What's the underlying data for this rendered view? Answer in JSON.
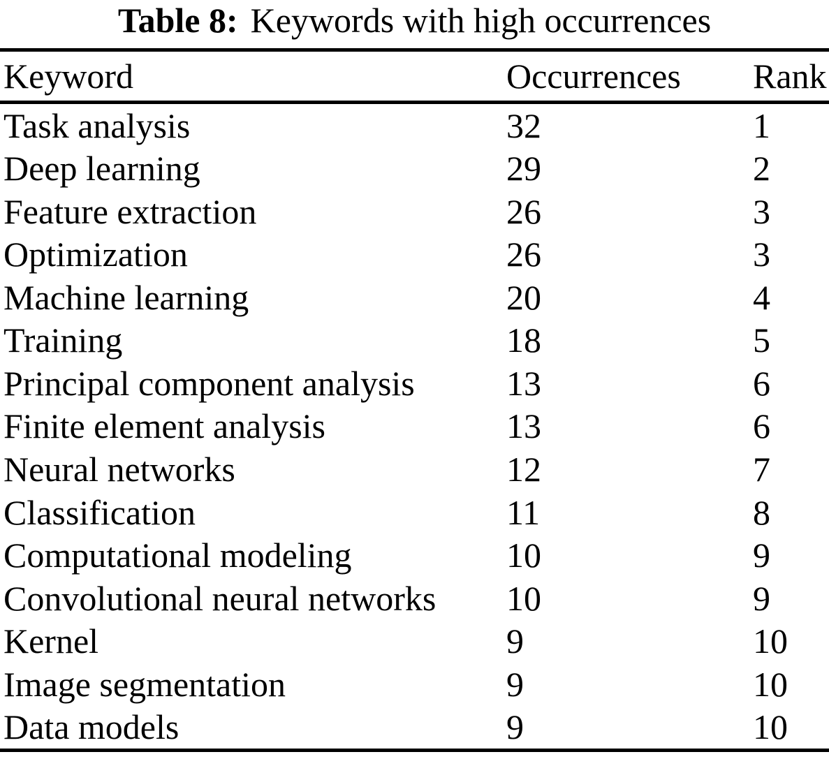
{
  "caption": {
    "label": "Table 8:",
    "text": "Keywords with high occurrences"
  },
  "table": {
    "headers": {
      "keyword": "Keyword",
      "occurrences": "Occurrences",
      "rank": "Rank"
    },
    "rows": [
      {
        "keyword": "Task analysis",
        "occurrences": "32",
        "rank": "1"
      },
      {
        "keyword": "Deep learning",
        "occurrences": "29",
        "rank": "2"
      },
      {
        "keyword": "Feature extraction",
        "occurrences": "26",
        "rank": "3"
      },
      {
        "keyword": "Optimization",
        "occurrences": "26",
        "rank": "3"
      },
      {
        "keyword": "Machine learning",
        "occurrences": "20",
        "rank": "4"
      },
      {
        "keyword": "Training",
        "occurrences": "18",
        "rank": "5"
      },
      {
        "keyword": "Principal component analysis",
        "occurrences": "13",
        "rank": "6"
      },
      {
        "keyword": "Finite element analysis",
        "occurrences": "13",
        "rank": "6"
      },
      {
        "keyword": "Neural networks",
        "occurrences": "12",
        "rank": "7"
      },
      {
        "keyword": "Classification",
        "occurrences": "11",
        "rank": "8"
      },
      {
        "keyword": "Computational modeling",
        "occurrences": "10",
        "rank": "9"
      },
      {
        "keyword": "Convolutional neural networks",
        "occurrences": "10",
        "rank": "9"
      },
      {
        "keyword": "Kernel",
        "occurrences": "9",
        "rank": "10"
      },
      {
        "keyword": "Image segmentation",
        "occurrences": "9",
        "rank": "10"
      },
      {
        "keyword": "Data models",
        "occurrences": "9",
        "rank": "10"
      }
    ]
  },
  "colors": {
    "text": "#000000",
    "background": "#ffffff",
    "rule": "#000000"
  }
}
